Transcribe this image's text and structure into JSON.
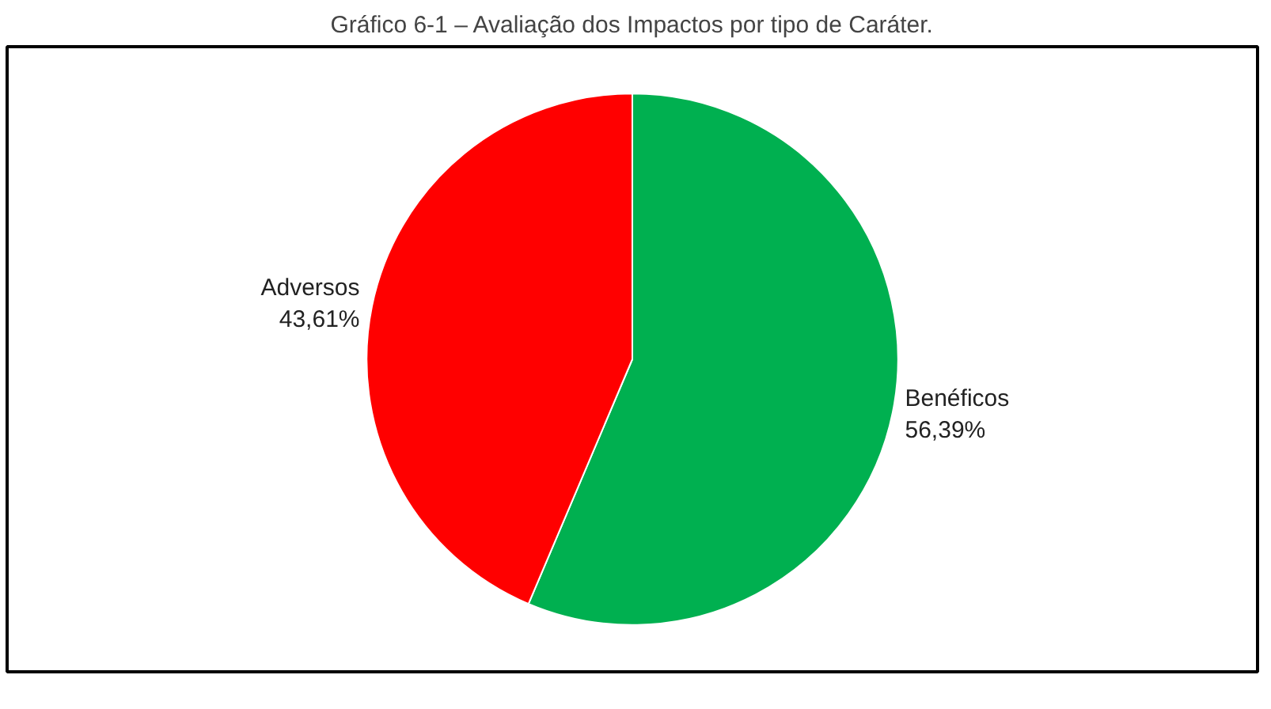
{
  "chart_data": {
    "type": "pie",
    "title": "Gráfico 6-1 – Avaliação dos Impactos por tipo de Caráter.",
    "categories": [
      "Benéficos",
      "Adversos"
    ],
    "values": [
      56.39,
      43.61
    ],
    "colors": [
      "#00b050",
      "#ff0000"
    ],
    "value_labels": [
      "56,39%",
      "43,61%"
    ]
  }
}
